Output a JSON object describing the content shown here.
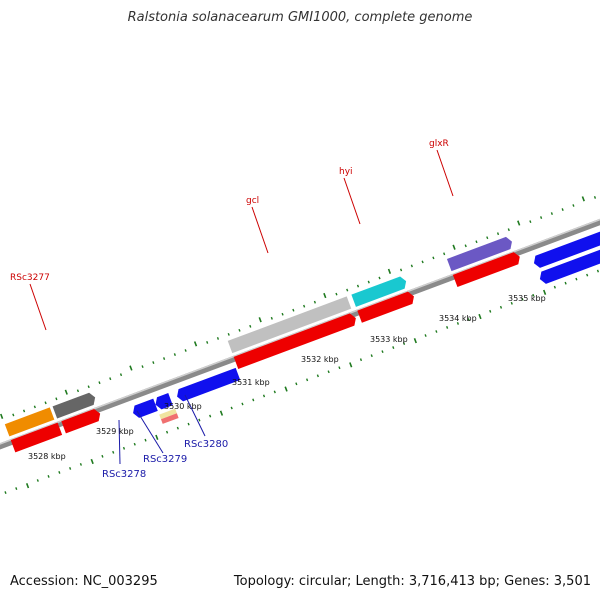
{
  "title": "Ralstonia solanacearum GMI1000, complete genome",
  "footer": {
    "accession": "Accession: NC_003295",
    "stats": "Topology: circular; Length: 3,716,413 bp; Genes: 3,501"
  },
  "scale_labels": [
    "3528 kbp",
    "3529 kbp",
    "3530 kbp",
    "3531 kbp",
    "3532 kbp",
    "3533 kbp",
    "3534 kbp",
    "3535 kbp"
  ],
  "gene_labels": {
    "forward": [
      "RSc3277",
      "gcl",
      "hyi",
      "glxR"
    ],
    "reverse": [
      "RSc3278",
      "RSc3279",
      "RSc3280"
    ]
  },
  "colors": {
    "backbone": "#8a8a8a",
    "cds": "#ee0000",
    "tick": "#1f7a1f",
    "gray_feature": "#c0c0c0",
    "dark_gray_feature": "#666666",
    "cyan_feature": "#19c8d0",
    "purple_feature": "#6b58c4",
    "blue_feature": "#1010ee",
    "orange_feature": "#f08c00",
    "forward_label": "#cc0000",
    "reverse_label": "#1a1aa8"
  }
}
